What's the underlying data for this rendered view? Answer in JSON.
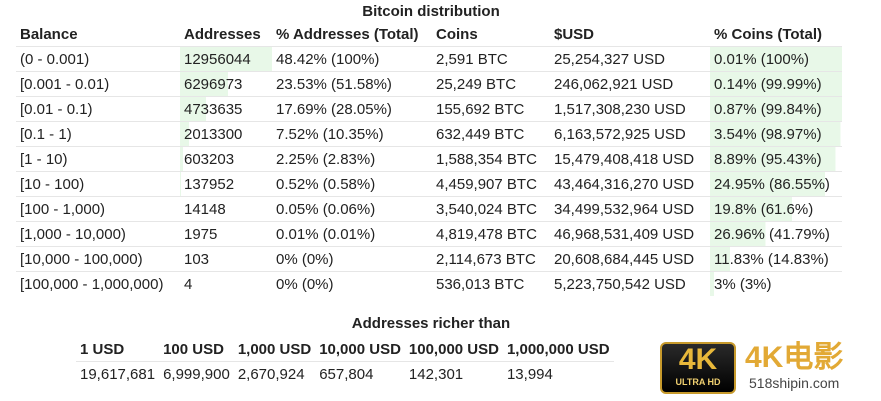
{
  "distribution": {
    "title": "Bitcoin distribution",
    "columns": [
      "Balance",
      "Addresses",
      "% Addresses (Total)",
      "Coins",
      "$USD",
      "% Coins (Total)"
    ],
    "highlight_color": "#e8f8e8",
    "rows": [
      {
        "balance": "(0 - 0.001)",
        "addresses": "12956044",
        "pct_addresses": "48.42% (100%)",
        "coins": "2,591 BTC",
        "usd": "25,254,327 USD",
        "pct_coins": "0.01% (100%)",
        "addr_fill": 1.0,
        "coin_fill": 1.0
      },
      {
        "balance": "[0.001 - 0.01)",
        "addresses": "6296973",
        "pct_addresses": "23.53% (51.58%)",
        "coins": "25,249 BTC",
        "usd": "246,062,921 USD",
        "pct_coins": "0.14% (99.99%)",
        "addr_fill": 0.5158,
        "coin_fill": 0.9999
      },
      {
        "balance": "[0.01 - 0.1)",
        "addresses": "4733635",
        "pct_addresses": "17.69% (28.05%)",
        "coins": "155,692 BTC",
        "usd": "1,517,308,230 USD",
        "pct_coins": "0.87% (99.84%)",
        "addr_fill": 0.2805,
        "coin_fill": 0.9984
      },
      {
        "balance": "[0.1 - 1)",
        "addresses": "2013300",
        "pct_addresses": "7.52% (10.35%)",
        "coins": "632,449 BTC",
        "usd": "6,163,572,925 USD",
        "pct_coins": "3.54% (98.97%)",
        "addr_fill": 0.1035,
        "coin_fill": 0.9897
      },
      {
        "balance": "[1 - 10)",
        "addresses": "603203",
        "pct_addresses": "2.25% (2.83%)",
        "coins": "1,588,354 BTC",
        "usd": "15,479,408,418 USD",
        "pct_coins": "8.89% (95.43%)",
        "addr_fill": 0.0283,
        "coin_fill": 0.9543
      },
      {
        "balance": "[10 - 100)",
        "addresses": "137952",
        "pct_addresses": "0.52% (0.58%)",
        "coins": "4,459,907 BTC",
        "usd": "43,464,316,270 USD",
        "pct_coins": "24.95% (86.55%)",
        "addr_fill": 0.0058,
        "coin_fill": 0.8655
      },
      {
        "balance": "[100 - 1,000)",
        "addresses": "14148",
        "pct_addresses": "0.05% (0.06%)",
        "coins": "3,540,024 BTC",
        "usd": "34,499,532,964 USD",
        "pct_coins": "19.8% (61.6%)",
        "addr_fill": 0.0006,
        "coin_fill": 0.616
      },
      {
        "balance": "[1,000 - 10,000)",
        "addresses": "1975",
        "pct_addresses": "0.01% (0.01%)",
        "coins": "4,819,478 BTC",
        "usd": "46,968,531,409 USD",
        "pct_coins": "26.96% (41.79%)",
        "addr_fill": 0.0001,
        "coin_fill": 0.4179
      },
      {
        "balance": "[10,000 - 100,000)",
        "addresses": "103",
        "pct_addresses": "0% (0%)",
        "coins": "2,114,673 BTC",
        "usd": "20,608,684,445 USD",
        "pct_coins": "11.83% (14.83%)",
        "addr_fill": 0.0,
        "coin_fill": 0.1483
      },
      {
        "balance": "[100,000 - 1,000,000)",
        "addresses": "4",
        "pct_addresses": "0% (0%)",
        "coins": "536,013 BTC",
        "usd": "5,223,750,542 USD",
        "pct_coins": "3% (3%)",
        "addr_fill": 0.0,
        "coin_fill": 0.03
      }
    ]
  },
  "richer": {
    "title": "Addresses richer than",
    "headers": [
      "1 USD",
      "100 USD",
      "1,000 USD",
      "10,000 USD",
      "100,000 USD",
      "1,000,000 USD"
    ],
    "values": [
      "19,617,681",
      "6,999,900",
      "2,670,924",
      "657,804",
      "142,301",
      "13,994"
    ]
  },
  "watermark": {
    "badge_big": "4K",
    "badge_small": "ULTRA HD",
    "brand": "4K电影",
    "site": "518shipin.com"
  }
}
